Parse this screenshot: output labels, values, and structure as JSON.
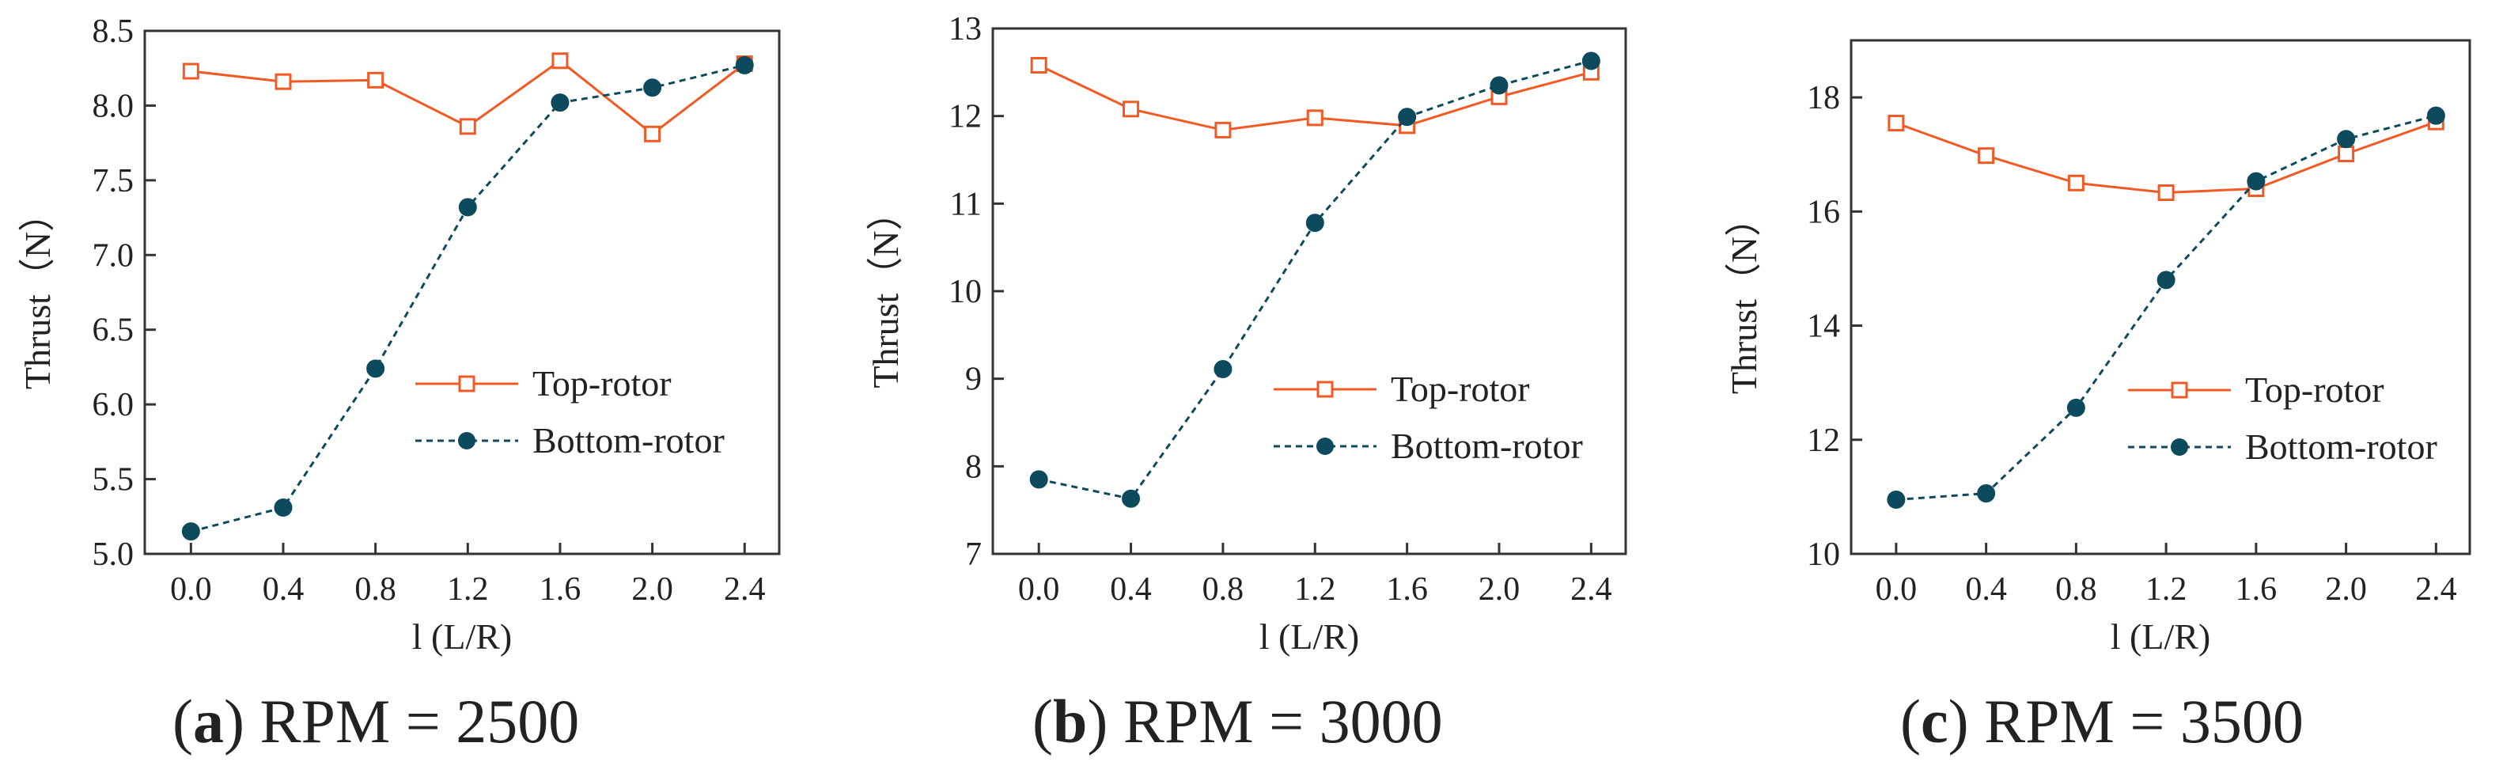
{
  "colors": {
    "top": "#F15A24",
    "bottom": "#0D4A5E",
    "axis": "#333333"
  },
  "chart_data": [
    {
      "type": "line",
      "panel": "a",
      "caption_letter": "a",
      "caption_text": "RPM = 2500",
      "x": [
        0.0,
        0.4,
        0.8,
        1.2,
        1.6,
        2.0,
        2.4
      ],
      "xticks": [
        "0.0",
        "0.4",
        "0.8",
        "1.2",
        "1.6",
        "2.0",
        "2.4"
      ],
      "xlim": [
        -0.2,
        2.55
      ],
      "ylim": [
        5.0,
        8.5
      ],
      "yticks": [
        5.0,
        5.5,
        6.0,
        6.5,
        7.0,
        7.5,
        8.0,
        8.5
      ],
      "ytick_labels": [
        "5.0",
        "5.5",
        "6.0",
        "6.5",
        "7.0",
        "7.5",
        "8.0",
        "8.5"
      ],
      "xlabel": "l (L/R)",
      "ylabel": "Thrust（N）",
      "series": [
        {
          "name": "Top-rotor",
          "values": [
            8.23,
            8.16,
            8.17,
            7.86,
            8.3,
            7.81,
            8.28
          ]
        },
        {
          "name": "Bottom-rotor",
          "values": [
            5.15,
            5.31,
            6.24,
            7.32,
            8.02,
            8.12,
            8.27
          ]
        }
      ]
    },
    {
      "type": "line",
      "panel": "b",
      "caption_letter": "b",
      "caption_text": "RPM = 3000",
      "x": [
        0.0,
        0.4,
        0.8,
        1.2,
        1.6,
        2.0,
        2.4
      ],
      "xticks": [
        "0.0",
        "0.4",
        "0.8",
        "1.2",
        "1.6",
        "2.0",
        "2.4"
      ],
      "xlim": [
        -0.2,
        2.55
      ],
      "ylim": [
        7,
        13
      ],
      "yticks": [
        7,
        8,
        9,
        10,
        11,
        12,
        13
      ],
      "ytick_labels": [
        "7",
        "8",
        "9",
        "10",
        "11",
        "12",
        "13"
      ],
      "xlabel": "l (L/R)",
      "ylabel": "Thrust（N）",
      "series": [
        {
          "name": "Top-rotor",
          "values": [
            12.58,
            12.08,
            11.84,
            11.98,
            11.89,
            12.22,
            12.5
          ]
        },
        {
          "name": "Bottom-rotor",
          "values": [
            7.85,
            7.63,
            9.11,
            10.78,
            11.99,
            12.35,
            12.63
          ]
        }
      ]
    },
    {
      "type": "line",
      "panel": "c",
      "caption_letter": "c",
      "caption_text": "RPM = 3500",
      "x": [
        0.0,
        0.4,
        0.8,
        1.2,
        1.6,
        2.0,
        2.4
      ],
      "xticks": [
        "0.0",
        "0.4",
        "0.8",
        "1.2",
        "1.6",
        "2.0",
        "2.4"
      ],
      "xlim": [
        -0.2,
        2.55
      ],
      "ylim": [
        10,
        19
      ],
      "yticks": [
        10,
        12,
        14,
        16,
        18
      ],
      "ytick_labels": [
        "10",
        "12",
        "14",
        "16",
        "18"
      ],
      "xlabel": "l (L/R)",
      "ylabel": "Thrust（N）",
      "series": [
        {
          "name": "Top-rotor",
          "values": [
            17.55,
            16.98,
            16.5,
            16.33,
            16.4,
            17.01,
            17.57
          ]
        },
        {
          "name": "Bottom-rotor",
          "values": [
            10.95,
            11.06,
            12.56,
            14.8,
            16.53,
            17.27,
            17.68
          ]
        }
      ]
    }
  ]
}
